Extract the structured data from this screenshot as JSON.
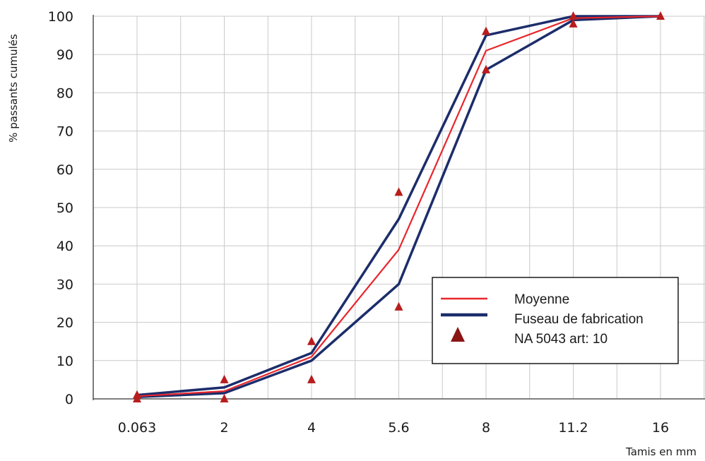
{
  "chart_data": {
    "type": "line",
    "title": "",
    "xlabel": "Tamis en mm",
    "ylabel": "% passants cumulés",
    "categories": [
      "0.063",
      "2",
      "4",
      "5.6",
      "8",
      "11.2",
      "16"
    ],
    "ylim": [
      0,
      100
    ],
    "yticks": [
      "0",
      "10",
      "20",
      "30",
      "40",
      "50",
      "60",
      "70",
      "80",
      "90",
      "100"
    ],
    "grid": true,
    "legend_position": "lower-right",
    "series": [
      {
        "name": "Moyenne",
        "kind": "line",
        "color": "#e8262c",
        "values": [
          0.7,
          2,
          11,
          39,
          91,
          99.5,
          100
        ]
      },
      {
        "name": "Fuseau de fabrication",
        "kind": "line",
        "color": "#1c2d6b",
        "values": [
          1,
          3,
          12,
          47,
          95,
          100,
          100
        ]
      },
      {
        "name": "",
        "kind": "line",
        "color": "#1c2d6b",
        "legend": false,
        "values": [
          0.5,
          1.5,
          10,
          30,
          86,
          99,
          100
        ]
      },
      {
        "name": "NA 5043 art: 10",
        "kind": "marker",
        "color": "#b81c1c",
        "points": [
          {
            "x": 0,
            "y": 0
          },
          {
            "x": 0,
            "y": 1
          },
          {
            "x": 1,
            "y": 0
          },
          {
            "x": 1,
            "y": 5
          },
          {
            "x": 2,
            "y": 5
          },
          {
            "x": 2,
            "y": 15
          },
          {
            "x": 3,
            "y": 24
          },
          {
            "x": 3,
            "y": 54
          },
          {
            "x": 4,
            "y": 86
          },
          {
            "x": 4,
            "y": 96
          },
          {
            "x": 5,
            "y": 98
          },
          {
            "x": 5,
            "y": 100
          },
          {
            "x": 6,
            "y": 100
          }
        ]
      }
    ]
  }
}
